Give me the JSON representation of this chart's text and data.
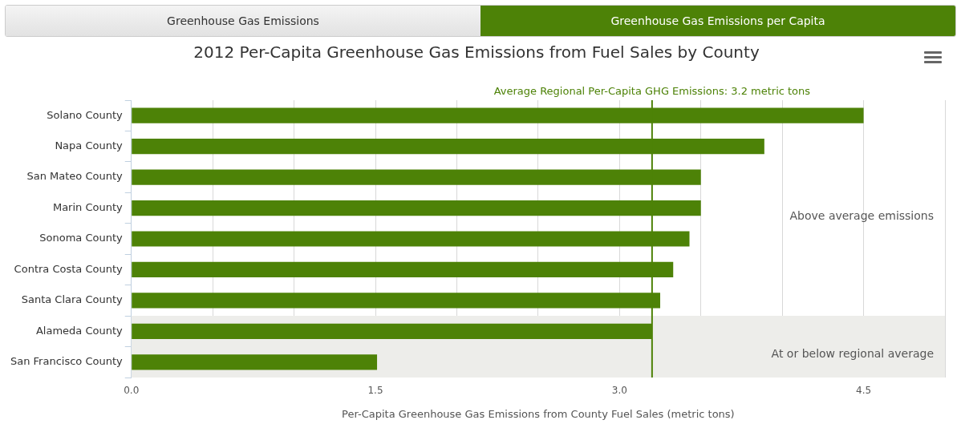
{
  "chart_data": {
    "type": "bar",
    "orientation": "horizontal",
    "title": "2012 Per-Capita Greenhouse Gas Emissions from Fuel Sales by County",
    "xlabel": "Per-Capita Greenhouse Gas Emissions from County Fuel Sales (metric tons)",
    "categories": [
      "Solano County",
      "Napa County",
      "San Mateo County",
      "Marin County",
      "Sonoma County",
      "Contra Costa County",
      "Santa Clara County",
      "Alameda County",
      "San Francisco County"
    ],
    "values": [
      4.5,
      3.89,
      3.5,
      3.5,
      3.43,
      3.33,
      3.25,
      3.2,
      1.51
    ],
    "color": "#4d8207",
    "xlim": [
      0,
      5
    ],
    "xticks": [
      {
        "value": 0,
        "label": "0.0"
      },
      {
        "value": 0.5,
        "label": null
      },
      {
        "value": 1,
        "label": null
      },
      {
        "value": 1.5,
        "label": "1.5"
      },
      {
        "value": 2,
        "label": null
      },
      {
        "value": 2.5,
        "label": null
      },
      {
        "value": 3,
        "label": "3.0"
      },
      {
        "value": 3.5,
        "label": null
      },
      {
        "value": 4,
        "label": null
      },
      {
        "value": 4.5,
        "label": "4.5"
      },
      {
        "value": 5,
        "label": null
      }
    ],
    "grid": "x",
    "ref_lines": [
      {
        "axis": "x",
        "value": 3.2,
        "label": "Average Regional Per-Capita GHG Emissions: 3.2 metric tons",
        "color": "#4d8207"
      }
    ],
    "bands": [
      {
        "axis": "y",
        "from": "Alameda County",
        "to": "San Francisco County",
        "label": "At or below regional average",
        "color": "#ededea"
      }
    ],
    "annotations": [
      "Greenhouse Gas Emissions",
      "Greenhouse Gas Emissions per Capita",
      "Above average emissions"
    ]
  }
}
